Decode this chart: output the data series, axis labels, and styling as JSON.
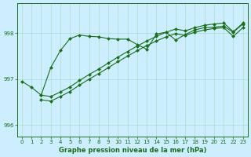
{
  "bg_color": "#cceeff",
  "grid_color": "#aaddcc",
  "line_color": "#1a6e1a",
  "marker_color": "#1a6e1a",
  "title": "Graphe pression niveau de la mer (hPa)",
  "xlim": [
    -0.5,
    23.5
  ],
  "ylim": [
    995.75,
    998.65
  ],
  "yticks": [
    996,
    997,
    998
  ],
  "xticks": [
    0,
    1,
    2,
    3,
    4,
    5,
    6,
    7,
    8,
    9,
    10,
    11,
    12,
    13,
    14,
    15,
    16,
    17,
    18,
    19,
    20,
    21,
    22,
    23
  ],
  "series1_x": [
    0,
    1,
    2,
    3,
    4,
    5,
    6,
    7,
    8,
    9,
    10,
    11,
    12,
    13,
    14,
    15,
    16,
    17,
    18,
    19,
    20,
    21,
    22,
    23
  ],
  "series1_y": [
    996.95,
    996.82,
    996.65,
    997.25,
    997.62,
    997.88,
    997.96,
    997.93,
    997.92,
    997.88,
    997.87,
    997.87,
    997.75,
    997.65,
    997.98,
    998.02,
    997.85,
    997.97,
    998.07,
    998.12,
    998.13,
    998.15,
    998.02,
    998.2
  ],
  "series2_x": [
    2,
    3,
    4,
    5,
    6,
    7,
    8,
    9,
    10,
    11,
    12,
    13,
    14,
    15,
    16,
    17,
    18,
    19,
    20,
    21,
    22,
    23
  ],
  "series2_y": [
    996.65,
    996.62,
    996.72,
    996.83,
    996.97,
    997.1,
    997.22,
    997.35,
    997.48,
    997.6,
    997.72,
    997.83,
    997.93,
    998.02,
    998.09,
    998.05,
    998.12,
    998.17,
    998.2,
    998.22,
    998.03,
    998.22
  ],
  "series3_x": [
    2,
    3,
    4,
    5,
    6,
    7,
    8,
    9,
    10,
    11,
    12,
    13,
    14,
    15,
    16,
    17,
    18,
    19,
    20,
    21,
    22,
    23
  ],
  "series3_y": [
    996.55,
    996.52,
    996.62,
    996.73,
    996.87,
    997.0,
    997.12,
    997.25,
    997.38,
    997.5,
    997.62,
    997.73,
    997.83,
    997.92,
    997.99,
    997.95,
    998.02,
    998.07,
    998.1,
    998.12,
    997.93,
    998.12
  ]
}
